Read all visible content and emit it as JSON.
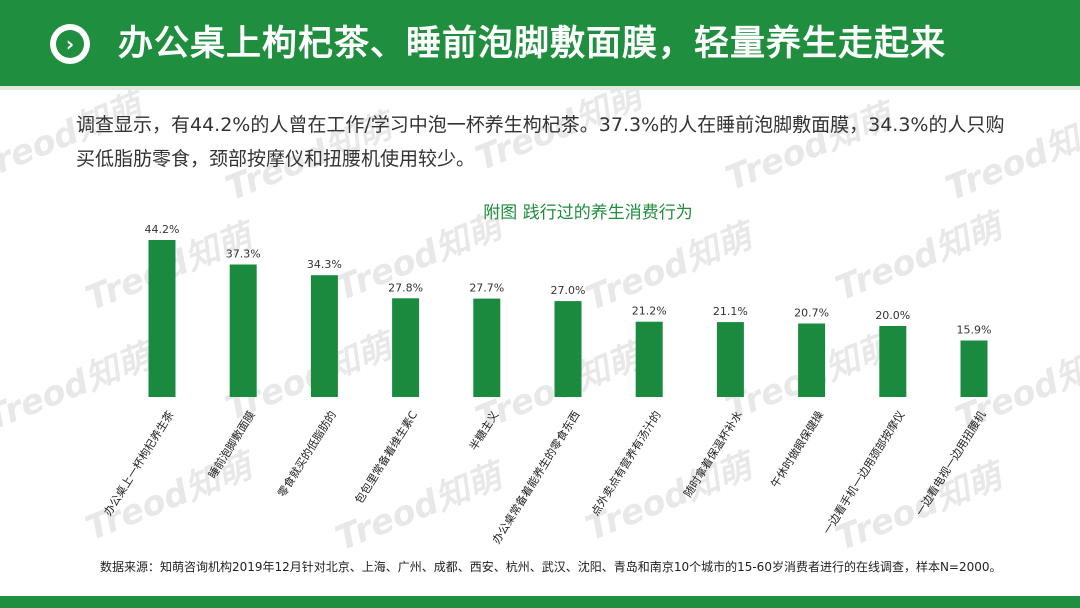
{
  "header": {
    "title": "办公桌上枸杞茶、睡前泡脚敷面膜，轻量养生走起来",
    "badge_icon": "chevron-right-icon"
  },
  "description": "调查显示，有44.2%的人曾在工作/学习中泡一杯养生枸杞茶。37.3%的人在睡前泡脚敷面膜，34.3%的人只购买低脂肪零食，颈部按摩仪和扭腰机使用较少。",
  "watermark": "Treod知萌",
  "source": "数据来源：知萌咨询机构2019年12月针对北京、上海、广州、成都、西安、杭州、武汉、沈阳、青岛和南京10个城市的15-60岁消费者进行的在线调查，样本N=2000。",
  "colors": {
    "brand": "#1f8e3e",
    "bar": "#1a8a3e"
  },
  "chart_data": {
    "type": "bar",
    "title": "附图  践行过的养生消费行为",
    "value_suffix": "%",
    "categories": [
      "办公桌上一杯枸杞养生茶",
      "睡前泡脚敷面膜",
      "零食就买的低脂肪的",
      "包包里常备着维生素C",
      "半糖主义",
      "办公桌常备着能养生的零食东西",
      "点外卖点有营养有汤汁的",
      "随时拿着保温杯补水",
      "午休时做眼保健操",
      "一边看手机一边用颈部按摩仪",
      "一边看电视一边用扭腰机"
    ],
    "values": [
      44.2,
      37.3,
      34.3,
      27.8,
      27.7,
      27.0,
      21.2,
      21.1,
      20.7,
      20.0,
      15.9
    ],
    "ylim": [
      0,
      50
    ],
    "grid": false,
    "legend": "none"
  }
}
